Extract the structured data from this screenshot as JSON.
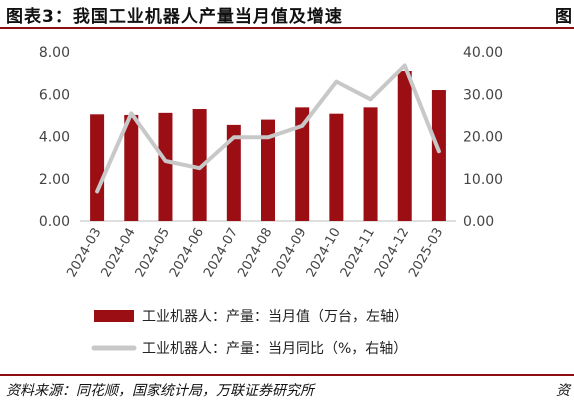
{
  "figure": {
    "title": "图表3：我国工业机器人产量当月值及增速",
    "next_title": "图",
    "source": "资料来源：同花顺，国家统计局，万联证券研究所",
    "next_source": "资"
  },
  "colors": {
    "bar": "#9b0e14",
    "line": "#c8c8c8",
    "axis_text": "#444444",
    "rule": "#8c0d12"
  },
  "chart_data": {
    "type": "bar+line",
    "categories": [
      "2024-03",
      "2024-04",
      "2024-05",
      "2024-06",
      "2024-07",
      "2024-08",
      "2024-09",
      "2024-10",
      "2024-11",
      "2024-12",
      "2025-03"
    ],
    "series": [
      {
        "name": "工业机器人：产量：当月值（万台，左轴）",
        "type": "bar",
        "axis": "left",
        "values": [
          5.05,
          5.02,
          5.12,
          5.3,
          4.55,
          4.8,
          5.38,
          5.08,
          5.38,
          7.1,
          6.2
        ]
      },
      {
        "name": "工业机器人：产量：当月同比（%，右轴）",
        "type": "line",
        "axis": "right",
        "values": [
          7.0,
          25.5,
          14.2,
          12.5,
          19.8,
          19.8,
          22.5,
          33.0,
          28.8,
          36.8,
          16.5
        ]
      }
    ],
    "y_left": {
      "ylim": [
        0,
        8
      ],
      "ticks": [
        "0.00",
        "2.00",
        "4.00",
        "6.00",
        "8.00"
      ]
    },
    "y_right": {
      "ylim": [
        0,
        40
      ],
      "ticks": [
        "0.00",
        "10.00",
        "20.00",
        "30.00",
        "40.00"
      ]
    },
    "grid": false,
    "legend_position": "bottom"
  }
}
